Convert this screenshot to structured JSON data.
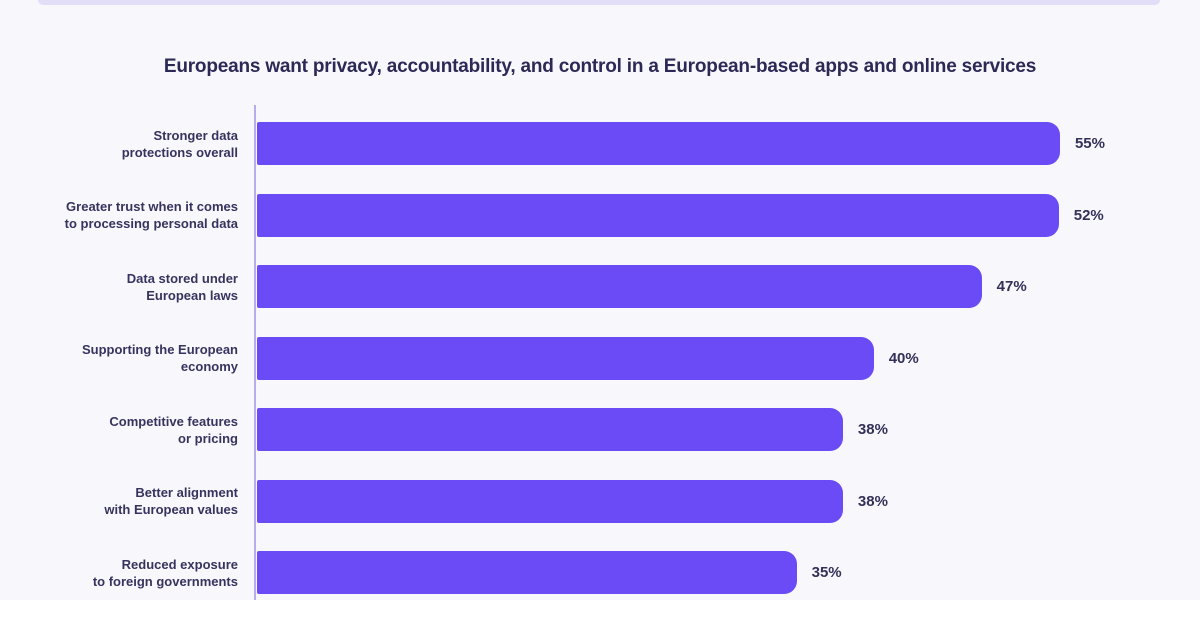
{
  "page": {
    "title": "Europeans want privacy, accountability, and control in a European-based apps and online services"
  },
  "chart_data": {
    "type": "bar",
    "orientation": "horizontal",
    "title": "Europeans want privacy, accountability, and control in a European-based apps and online services",
    "categories": [
      [
        "Stronger data",
        "protections overall"
      ],
      [
        "Greater trust when it comes",
        "to processing personal data"
      ],
      [
        "Data stored under",
        "European laws"
      ],
      [
        "Supporting the European",
        "economy"
      ],
      [
        "Competitive features",
        "or pricing"
      ],
      [
        "Better alignment",
        "with European values"
      ],
      [
        "Reduced exposure",
        "to foreign governments"
      ]
    ],
    "values": [
      55,
      52,
      47,
      40,
      38,
      38,
      35
    ],
    "value_labels": [
      "55%",
      "52%",
      "47%",
      "40%",
      "38%",
      "38%",
      "35%"
    ],
    "axis_max": 55,
    "xlabel": "",
    "ylabel": "",
    "grid": false,
    "legend": false,
    "colors": {
      "bar": "#6b4bf5",
      "axis_line": "#b6adee",
      "background": "#f8f8fc",
      "title_text": "#2d2956",
      "label_text": "#37335f",
      "value_text": "#333059",
      "top_strip": "#e2def8"
    }
  }
}
